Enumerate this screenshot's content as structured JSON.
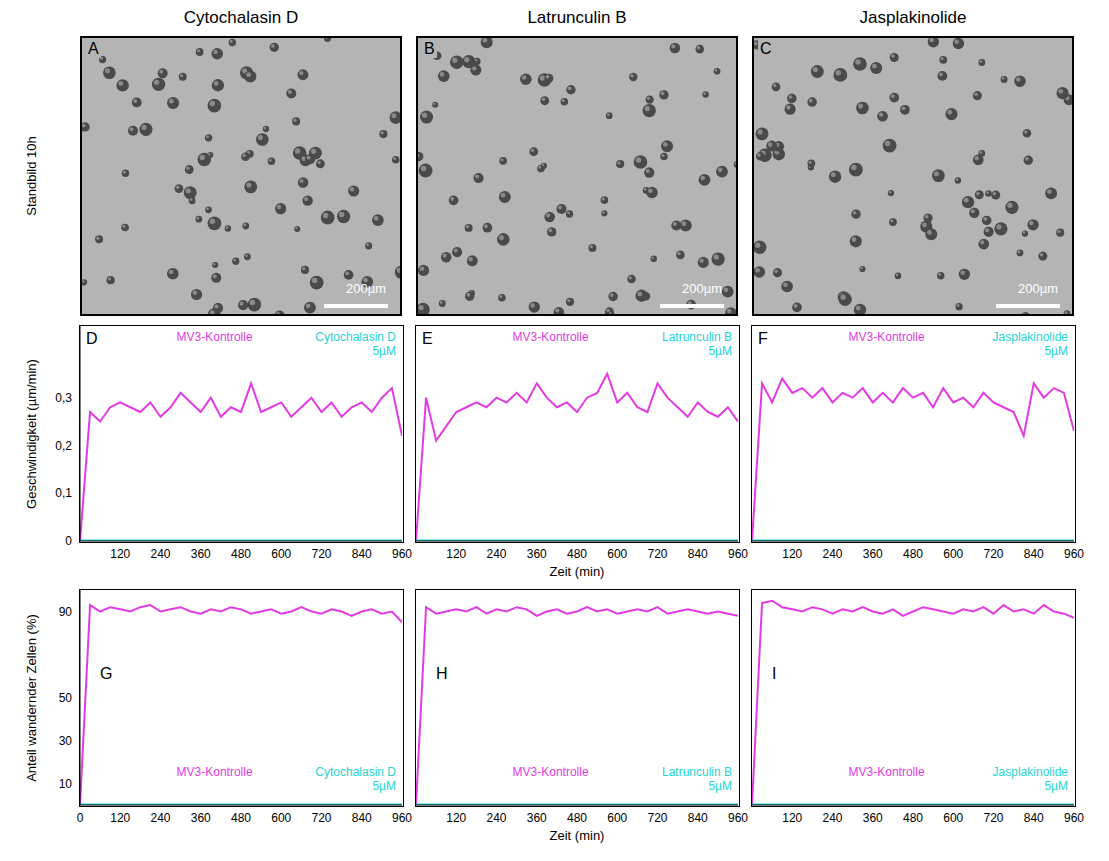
{
  "column_titles": [
    "Cytochalasin D",
    "Latrunculin B",
    "Jasplakinolide"
  ],
  "row_label": "Standbild 10h",
  "images": [
    {
      "panel": "A",
      "scale_bar": "200µm"
    },
    {
      "panel": "B",
      "scale_bar": "200µm"
    },
    {
      "panel": "C",
      "scale_bar": "200µm"
    }
  ],
  "chart_data": [
    {
      "panel": "D",
      "type": "line",
      "y_label": "Geschwindigkeit (µm/min)",
      "x": [
        0,
        30,
        60,
        90,
        120,
        150,
        180,
        210,
        240,
        270,
        300,
        330,
        360,
        390,
        420,
        450,
        480,
        510,
        540,
        570,
        600,
        630,
        660,
        690,
        720,
        750,
        780,
        810,
        840,
        870,
        900,
        930,
        960
      ],
      "xlim": [
        0,
        960
      ],
      "xticks": [
        120,
        240,
        360,
        480,
        600,
        720,
        840,
        960
      ],
      "ylim": [
        0,
        0.45
      ],
      "yticks": [
        0,
        {
          "value": 0.1,
          "label": "0,1"
        },
        {
          "value": 0.2,
          "label": "0,2"
        },
        {
          "value": 0.3,
          "label": "0,3"
        }
      ],
      "legend": "top",
      "series": [
        {
          "name": "MV3-Kontrolle",
          "color": "#e33be3",
          "values": [
            0,
            0.27,
            0.25,
            0.28,
            0.29,
            0.28,
            0.27,
            0.29,
            0.26,
            0.28,
            0.31,
            0.29,
            0.27,
            0.3,
            0.26,
            0.28,
            0.27,
            0.33,
            0.27,
            0.28,
            0.29,
            0.26,
            0.28,
            0.3,
            0.27,
            0.29,
            0.26,
            0.28,
            0.29,
            0.27,
            0.3,
            0.32,
            0.22
          ]
        },
        {
          "name": "Cytochalasin D 5µM",
          "color": "#25d5d5",
          "values": [
            0,
            0,
            0,
            0,
            0,
            0,
            0,
            0,
            0,
            0,
            0,
            0,
            0,
            0,
            0,
            0,
            0,
            0,
            0,
            0,
            0,
            0,
            0,
            0,
            0,
            0,
            0,
            0,
            0,
            0,
            0,
            0,
            0
          ]
        }
      ]
    },
    {
      "panel": "E",
      "type": "line",
      "x_label": "Zeit (min)",
      "tick_labels": "x",
      "x": [
        0,
        30,
        60,
        90,
        120,
        150,
        180,
        210,
        240,
        270,
        300,
        330,
        360,
        390,
        420,
        450,
        480,
        510,
        540,
        570,
        600,
        630,
        660,
        690,
        720,
        750,
        780,
        810,
        840,
        870,
        900,
        930,
        960
      ],
      "xlim": [
        0,
        960
      ],
      "xticks": [
        120,
        240,
        360,
        480,
        600,
        720,
        840,
        960
      ],
      "ylim": [
        0,
        0.45
      ],
      "legend": "top",
      "series": [
        {
          "name": "MV3-Kontrolle",
          "color": "#e33be3",
          "values": [
            0,
            0.3,
            0.21,
            0.24,
            0.27,
            0.28,
            0.29,
            0.28,
            0.3,
            0.29,
            0.31,
            0.29,
            0.33,
            0.3,
            0.28,
            0.29,
            0.27,
            0.3,
            0.31,
            0.35,
            0.29,
            0.31,
            0.28,
            0.27,
            0.33,
            0.3,
            0.28,
            0.26,
            0.29,
            0.27,
            0.26,
            0.28,
            0.25
          ]
        },
        {
          "name": "Latrunculin B 5µM",
          "color": "#25d5d5",
          "values": [
            0,
            0,
            0,
            0,
            0,
            0,
            0,
            0,
            0,
            0,
            0,
            0,
            0,
            0,
            0,
            0,
            0,
            0,
            0,
            0,
            0,
            0,
            0,
            0,
            0,
            0,
            0,
            0,
            0,
            0,
            0,
            0,
            0
          ]
        }
      ]
    },
    {
      "panel": "F",
      "type": "line",
      "tick_labels": "x",
      "x": [
        0,
        30,
        60,
        90,
        120,
        150,
        180,
        210,
        240,
        270,
        300,
        330,
        360,
        390,
        420,
        450,
        480,
        510,
        540,
        570,
        600,
        630,
        660,
        690,
        720,
        750,
        780,
        810,
        840,
        870,
        900,
        930,
        960
      ],
      "xlim": [
        0,
        960
      ],
      "xticks": [
        120,
        240,
        360,
        480,
        600,
        720,
        840,
        960
      ],
      "ylim": [
        0,
        0.45
      ],
      "legend": "top",
      "series": [
        {
          "name": "MV3-Kontrolle",
          "color": "#e33be3",
          "values": [
            0,
            0.33,
            0.29,
            0.34,
            0.31,
            0.32,
            0.3,
            0.32,
            0.29,
            0.31,
            0.3,
            0.32,
            0.29,
            0.31,
            0.29,
            0.32,
            0.3,
            0.31,
            0.28,
            0.32,
            0.29,
            0.3,
            0.28,
            0.31,
            0.29,
            0.28,
            0.27,
            0.22,
            0.33,
            0.3,
            0.32,
            0.31,
            0.23
          ]
        },
        {
          "name": "Jasplakinolide 5µM",
          "color": "#25d5d5",
          "values": [
            0,
            0,
            0,
            0,
            0,
            0,
            0,
            0,
            0,
            0,
            0,
            0,
            0,
            0,
            0,
            0,
            0,
            0,
            0,
            0,
            0,
            0,
            0,
            0,
            0,
            0,
            0,
            0,
            0,
            0,
            0,
            0,
            0
          ]
        }
      ]
    },
    {
      "panel": "G",
      "type": "line",
      "y_label": "Anteil wandernder Zellen (%)",
      "x": [
        0,
        30,
        60,
        90,
        120,
        150,
        180,
        210,
        240,
        270,
        300,
        330,
        360,
        390,
        420,
        450,
        480,
        510,
        540,
        570,
        600,
        630,
        660,
        690,
        720,
        750,
        780,
        810,
        840,
        870,
        900,
        930,
        960
      ],
      "xlim": [
        0,
        960
      ],
      "xticks": [
        0,
        120,
        240,
        360,
        480,
        600,
        720,
        840,
        960
      ],
      "ylim": [
        0,
        100
      ],
      "yticks": [
        10,
        30,
        50,
        90
      ],
      "legend": "bottom",
      "series": [
        {
          "name": "MV3-Kontrolle",
          "color": "#e33be3",
          "values": [
            0,
            93,
            90,
            92,
            91,
            90,
            92,
            93,
            90,
            91,
            92,
            90,
            89,
            91,
            90,
            92,
            91,
            89,
            90,
            91,
            89,
            90,
            92,
            90,
            89,
            91,
            90,
            88,
            90,
            91,
            89,
            90,
            85
          ]
        },
        {
          "name": "Cytochalasin D 5µM",
          "color": "#25d5d5",
          "values": [
            0,
            0,
            0,
            0,
            0,
            0,
            0,
            0,
            0,
            0,
            0,
            0,
            0,
            0,
            0,
            0,
            0,
            0,
            0,
            0,
            0,
            0,
            0,
            0,
            0,
            0,
            0,
            0,
            0,
            0,
            0,
            0,
            0
          ]
        }
      ]
    },
    {
      "panel": "H",
      "type": "line",
      "x_label": "Zeit (min)",
      "tick_labels": "x",
      "x": [
        0,
        30,
        60,
        90,
        120,
        150,
        180,
        210,
        240,
        270,
        300,
        330,
        360,
        390,
        420,
        450,
        480,
        510,
        540,
        570,
        600,
        630,
        660,
        690,
        720,
        750,
        780,
        810,
        840,
        870,
        900,
        930,
        960
      ],
      "xlim": [
        0,
        960
      ],
      "xticks": [
        120,
        240,
        360,
        480,
        600,
        720,
        840,
        960
      ],
      "ylim": [
        0,
        100
      ],
      "legend": "bottom",
      "series": [
        {
          "name": "MV3-Kontrolle",
          "color": "#e33be3",
          "values": [
            0,
            92,
            89,
            90,
            91,
            90,
            92,
            89,
            91,
            90,
            92,
            91,
            88,
            90,
            91,
            89,
            90,
            92,
            90,
            91,
            89,
            90,
            91,
            90,
            92,
            89,
            90,
            91,
            90,
            89,
            90,
            89,
            88
          ]
        },
        {
          "name": "Latrunculin B 5µM",
          "color": "#25d5d5",
          "values": [
            0,
            0,
            0,
            0,
            0,
            0,
            0,
            0,
            0,
            0,
            0,
            0,
            0,
            0,
            0,
            0,
            0,
            0,
            0,
            0,
            0,
            0,
            0,
            0,
            0,
            0,
            0,
            0,
            0,
            0,
            0,
            0,
            0
          ]
        }
      ]
    },
    {
      "panel": "I",
      "type": "line",
      "tick_labels": "x",
      "x": [
        0,
        30,
        60,
        90,
        120,
        150,
        180,
        210,
        240,
        270,
        300,
        330,
        360,
        390,
        420,
        450,
        480,
        510,
        540,
        570,
        600,
        630,
        660,
        690,
        720,
        750,
        780,
        810,
        840,
        870,
        900,
        930,
        960
      ],
      "xlim": [
        0,
        960
      ],
      "xticks": [
        120,
        240,
        360,
        480,
        600,
        720,
        840,
        960
      ],
      "ylim": [
        0,
        100
      ],
      "legend": "bottom",
      "series": [
        {
          "name": "MV3-Kontrolle",
          "color": "#e33be3",
          "values": [
            0,
            94,
            95,
            92,
            91,
            90,
            92,
            91,
            89,
            91,
            90,
            92,
            90,
            89,
            91,
            88,
            90,
            92,
            91,
            90,
            89,
            91,
            90,
            92,
            89,
            93,
            90,
            91,
            89,
            93,
            90,
            89,
            87
          ]
        },
        {
          "name": "Jasplakinolide 5µM",
          "color": "#25d5d5",
          "values": [
            0,
            0,
            0,
            0,
            0,
            0,
            0,
            0,
            0,
            0,
            0,
            0,
            0,
            0,
            0,
            0,
            0,
            0,
            0,
            0,
            0,
            0,
            0,
            0,
            0,
            0,
            0,
            0,
            0,
            0,
            0,
            0,
            0
          ]
        }
      ]
    }
  ]
}
